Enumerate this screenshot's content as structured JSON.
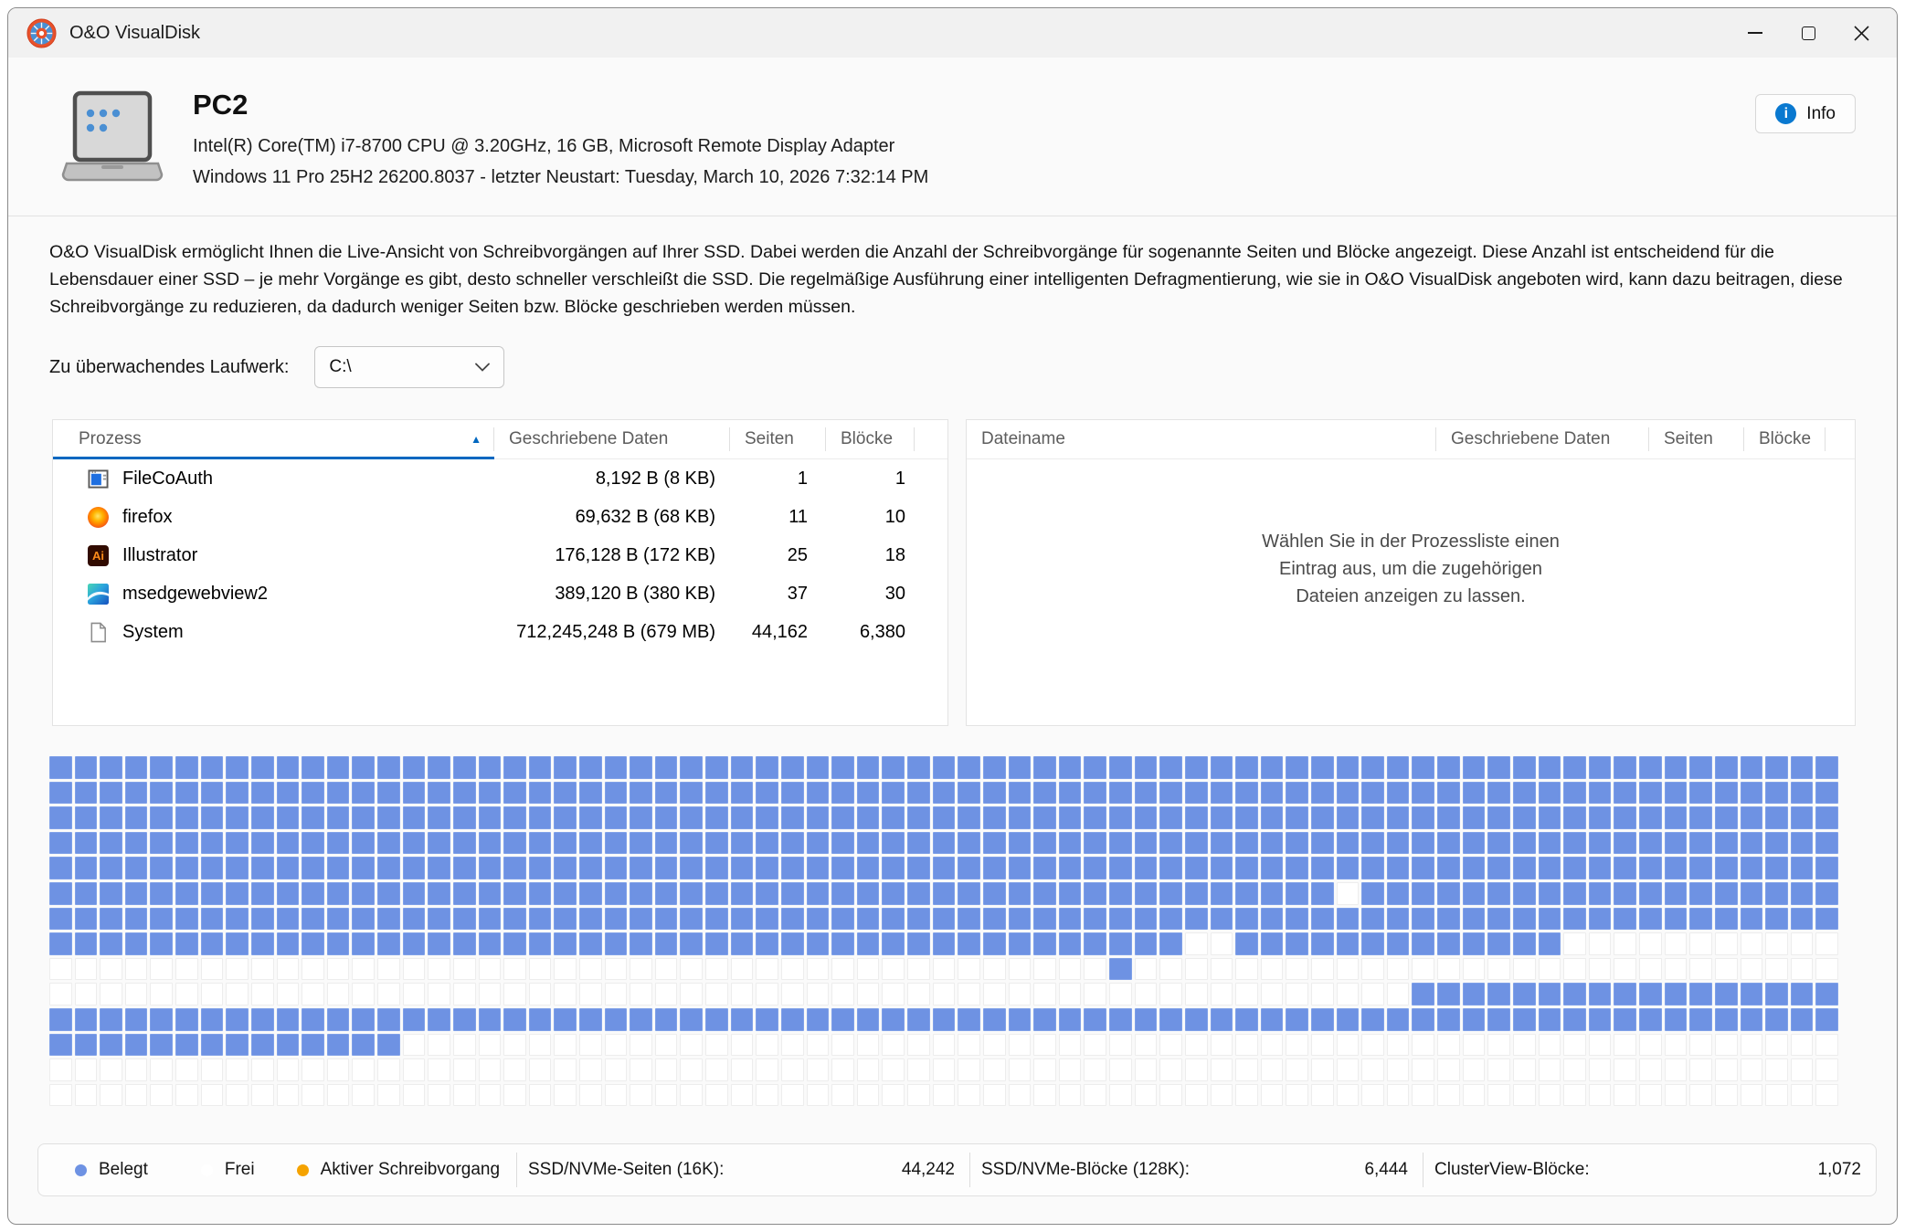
{
  "window": {
    "title": "O&O VisualDisk"
  },
  "header": {
    "computer_name": "PC2",
    "hardware": "Intel(R) Core(TM) i7-8700 CPU @ 3.20GHz, 16 GB, Microsoft Remote Display Adapter",
    "os": "Windows 11 Pro 25H2 26200.8037 - letzter Neustart: Tuesday, March 10, 2026 7:32:14 PM",
    "info_button": "Info"
  },
  "description": "O&O VisualDisk ermöglicht Ihnen die Live-Ansicht von Schreibvorgängen auf Ihrer SSD. Dabei werden die Anzahl der Schreibvorgänge für sogenannte Seiten und Blöcke angezeigt. Diese Anzahl ist entscheidend für die Lebensdauer einer SSD – je mehr Vorgänge es gibt, desto schneller verschleißt die SSD. Die regelmäßige Ausführung einer intelligenten Defragmentierung, wie sie in O&O VisualDisk angeboten wird, kann dazu beitragen, diese Schreibvorgänge zu reduzieren, da dadurch weniger Seiten bzw. Blöcke geschrieben werden müssen.",
  "drive_selector": {
    "label": "Zu überwachendes Laufwerk:",
    "value": "C:\\"
  },
  "process_table": {
    "columns": [
      "Prozess",
      "Geschriebene Daten",
      "Seiten",
      "Blöcke"
    ],
    "sorted_column": "Prozess",
    "sort_direction": "asc",
    "rows": [
      {
        "icon": "filecoauth-icon",
        "name": "FileCoAuth",
        "data": "8,192 B (8 KB)",
        "seiten": "1",
        "bloecke": "1"
      },
      {
        "icon": "firefox-icon",
        "name": "firefox",
        "data": "69,632 B (68 KB)",
        "seiten": "11",
        "bloecke": "10"
      },
      {
        "icon": "illustrator-icon",
        "name": "Illustrator",
        "data": "176,128 B (172 KB)",
        "seiten": "25",
        "bloecke": "18"
      },
      {
        "icon": "msedgewebview2-icon",
        "name": "msedgewebview2",
        "data": "389,120 B (380 KB)",
        "seiten": "37",
        "bloecke": "30"
      },
      {
        "icon": "system-icon",
        "name": "System",
        "data": "712,245,248 B (679 MB)",
        "seiten": "44,162",
        "bloecke": "6,380"
      }
    ]
  },
  "file_table": {
    "columns": [
      "Dateiname",
      "Geschriebene Daten",
      "Seiten",
      "Blöcke"
    ],
    "empty_message_lines": [
      "Wählen Sie in der Prozessliste einen",
      "Eintrag aus, um die zugehörigen",
      "Dateien anzeigen zu lassen."
    ]
  },
  "cluster_grid": {
    "columns": 71,
    "row_count": 14,
    "filled_color": "#6e92e3",
    "empty_color": "#ffffff",
    "rows_filled_ranges": [
      [
        [
          0,
          70
        ]
      ],
      [
        [
          0,
          70
        ]
      ],
      [
        [
          0,
          70
        ]
      ],
      [
        [
          0,
          70
        ]
      ],
      [
        [
          0,
          70
        ]
      ],
      [
        [
          0,
          50
        ],
        [
          52,
          70
        ]
      ],
      [
        [
          0,
          70
        ]
      ],
      [
        [
          0,
          44
        ],
        [
          47,
          59
        ]
      ],
      [
        [
          42,
          42
        ]
      ],
      [
        [
          54,
          70
        ]
      ],
      [
        [
          0,
          70
        ]
      ],
      [
        [
          0,
          13
        ]
      ],
      [],
      []
    ]
  },
  "status_bar": {
    "legend": [
      {
        "label": "Belegt",
        "color": "#6e92e3"
      },
      {
        "label": "Frei",
        "color": "#ffffff"
      },
      {
        "label": "Aktiver Schreibvorgang",
        "color": "#f5a300"
      }
    ],
    "stats": [
      {
        "label": "SSD/NVMe-Seiten (16K):",
        "value": "44,242"
      },
      {
        "label": "SSD/NVMe-Blöcke (128K):",
        "value": "6,444"
      },
      {
        "label": "ClusterView-Blöcke:",
        "value": "1,072"
      }
    ]
  }
}
